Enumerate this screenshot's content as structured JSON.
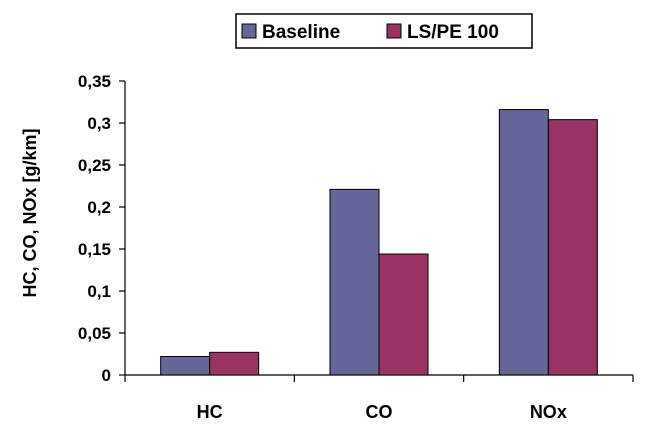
{
  "chart_data": {
    "type": "bar",
    "categories": [
      "HC",
      "CO",
      "NOx"
    ],
    "series": [
      {
        "name": "Baseline",
        "values": [
          0.022,
          0.221,
          0.316
        ],
        "color": "#666699"
      },
      {
        "name": "LS/PE 100",
        "values": [
          0.027,
          0.144,
          0.304
        ],
        "color": "#993366"
      }
    ],
    "ylabel": "HC, CO, NOx [g/km]",
    "ylim": [
      0,
      0.35
    ],
    "yticks": [
      0,
      0.05,
      0.1,
      0.15,
      0.2,
      0.25,
      0.3,
      0.35
    ],
    "ytick_labels": [
      "0",
      "0,05",
      "0,1",
      "0,15",
      "0,2",
      "0,25",
      "0,3",
      "0,35"
    ],
    "grid": false,
    "legend": "top-center"
  }
}
